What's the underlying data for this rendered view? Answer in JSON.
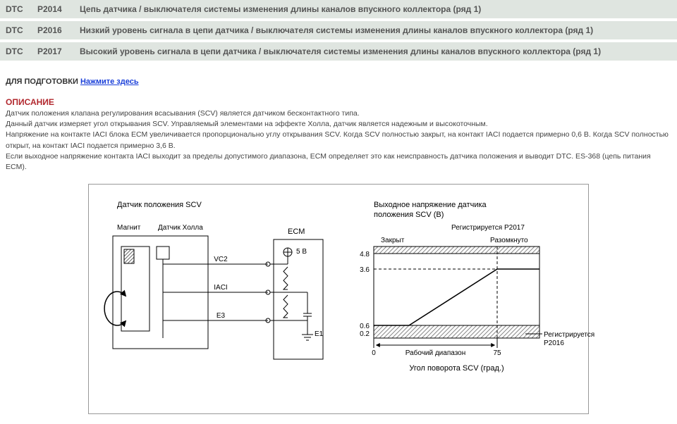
{
  "dtc_rows": [
    {
      "dtc": "DTC",
      "code": "P2014",
      "desc": "Цепь датчика / выключателя системы изменения длины каналов впускного коллектора (ряд 1)"
    },
    {
      "dtc": "DTC",
      "code": "P2016",
      "desc": "Низкий уровень сигнала в цепи датчика / выключателя системы изменения длины каналов впускного коллектора (ряд 1)"
    },
    {
      "dtc": "DTC",
      "code": "P2017",
      "desc": "Высокий уровень сигнала в цепи датчика / выключателя системы изменения длины каналов впускного коллектора (ряд 1)"
    }
  ],
  "prep_label": "ДЛЯ ПОДГОТОВКИ",
  "prep_link": "Нажмите здесь",
  "desc_title": "ОПИСАНИЕ",
  "desc_body": "Датчик положения клапана регулирования всасывания (SCV) является датчиком бесконтактного типа.\nДанный датчик измеряет угол открывания SCV. Управляемый элементами на эффекте Холла, датчик является надежным и высокоточным.\nНапряжение на контакте IACI блока ECM увеличивается пропорционально углу открывания SCV. Когда SCV полностью закрыт, на контакт IACI подается примерно 0,6 В. Когда SCV полностью открыт, на контакт IACI подается примерно 3,6 В.\nЕсли выходное напряжение контакта IACI выходит за пределы допустимого диапазона, ECM определяет это как неисправность датчика положения и выводит DTC. ES-368 (цепь питания ECM).",
  "diagram": {
    "left": {
      "title": "Датчик положения SCV",
      "magnet": "Магнит",
      "hall": "Датчик Холла",
      "ecm": "ECM",
      "v5": "5 В",
      "vc2": "VC2",
      "iaci": "IACI",
      "e3": "E3",
      "e1": "E1"
    },
    "right": {
      "title": "Выходное напряжение датчика положения SCV (В)",
      "p2017": "Регистрируется P2017",
      "p2016": "Регистрируется P2016",
      "closed": "Закрыт",
      "open": "Разомкнуто",
      "range": "Рабочий диапазон",
      "xaxis": "Угол поворота SCV (град.)",
      "yticks": [
        "0.2",
        "0.6",
        "3.6",
        "4.8"
      ],
      "xticks": [
        "0",
        "75"
      ],
      "yvalues": {
        "y_4_8": 0,
        "y_3_6": 32,
        "y_0_6": 112,
        "y_0_2": 123,
        "height": 130
      },
      "line": {
        "flat_y": 112,
        "rise_start_x": 50,
        "rise_end_x": 175,
        "top_y": 32
      },
      "hatch_color": "#888",
      "line_color": "#000",
      "grid_color": "#000"
    },
    "colors": {
      "border": "#999",
      "text": "#000",
      "box_stroke": "#000",
      "bg": "#ffffff"
    }
  }
}
